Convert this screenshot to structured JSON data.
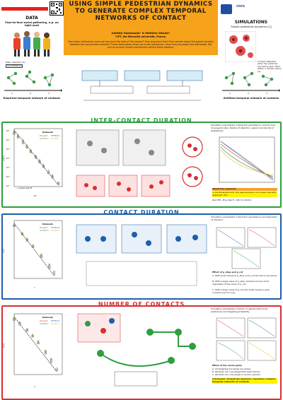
{
  "header": {
    "title": "USING SIMPLE PEDESTRIAN DYNAMICS TO GENERATE COMPLEX TEMPORAL NETWORKS OF CONTACT",
    "authors": "Juliette Gambaudo¹ & Mathieu Génois¹",
    "affiliation": "¹CPT, Aix-Marseille université, France.",
    "intro": "How many interactions have we had since the start of this session? How long were they? Ever wonder about the typical duration between two consecutive contacts? These observables show non-trivial behaviours, since they are power law distributed. We aim to uncover simple mechanisms behind these patterns.",
    "logo_text": "cnrs"
  },
  "data_panel": {
    "heading": "DATA",
    "subtitle": "Face-to-face social gathering, e.g. on right now!",
    "collection_label": "Data collection [1]",
    "collection_source": "SocioPatterns",
    "timeline_ticks": [
      "1",
      "2",
      "3"
    ],
    "caption": "Empirical temporal network of contacts"
  },
  "sim_panel": {
    "heading": "SIMULATIONS",
    "subtitle": "Simple pedestrian dynamics [1]",
    "contact_note": "Contact detected when two particles are facing each other within a certain radius [1]",
    "timeline_ticks": [
      "1",
      "2",
      "3"
    ],
    "caption": "Artificial temporal network of contacts"
  },
  "sections": {
    "inter_contact": "INTER-CONTACT DURATION",
    "contact": "CONTACT DURATION",
    "number": "NUMBER OF CONTACTS"
  },
  "plots": {
    "inter": {
      "legend_title": "Datasets",
      "legend_items": [
        "Hosp13",
        "SFHH14",
        "ICCSS17",
        "Conf19"
      ],
      "y_label": "p(Δτ)",
      "x_label": "Δτ",
      "fit_label": "— power-law fit",
      "y_ticks": [
        "10⁻¹",
        "10⁻²",
        "10⁻³",
        "10⁻⁴",
        "10⁻⁵",
        "10⁻⁶",
        "10⁻⁷"
      ],
      "x_ticks": [
        "10⁰",
        "10¹",
        "10²",
        "10³",
        "10⁴"
      ],
      "note": "Simulation parameters: Interaction persistence controls how long agents stay; Radius of detection, speed and density of pedestrians.",
      "about_title": "About the exponent",
      "about_text": "In the Brownian limit, the approximation is a power law with exponent -3/2.",
      "ref": "Reid PM., Phys Rev E, 106 (1) (2022)."
    },
    "contact": {
      "legend_title": "Datasets",
      "legend_items": [
        "Hosp13",
        "SFHH14",
        "ICCSS17",
        "Conf19"
      ],
      "y_label": "p(τ)",
      "x_label": "τ",
      "note": "Simulation parameters: Interaction persistence and alignment of direction.",
      "effect_title": "Effect of p_stop and p_rot",
      "effect_lines": [
        "A. With small values of p_stop and p_rot the tail is recovered.",
        "B. With a large value of p_stop contacts are too short, regardless of the value of p_rot.",
        "C. With a large value of p_rot and small values p_stop, contacts are too long."
      ]
    },
    "number": {
      "legend_title": "Datasets",
      "legend_items": [
        "Hosp13",
        "SFHH14",
        "ICCSS17",
        "Conf19"
      ],
      "y_label": "p(n)",
      "x_label": "n",
      "note": "Simulation parameters: Fraction of agents with social preference and targeting probability.",
      "effect_title": "Effect of the social game",
      "effect_lines": [
        "A. All targeting processes are active.",
        "B. Particles can only target their best friends.",
        "C. Particles can only target a random partner."
      ],
      "conclusion": "Conclusion: Pedestrian dynamics reproduce complex temporal networks of contacts."
    }
  },
  "colors": {
    "orange": "#f7a21b",
    "green": "#2e9e3e",
    "blue": "#1e5fa8",
    "red": "#d63030",
    "yellow": "#fff200"
  },
  "chart_data": [
    {
      "type": "scatter",
      "series": [
        {
          "name": "Hosp13",
          "x": [
            1,
            2,
            5,
            10,
            20,
            50,
            100,
            200,
            500,
            1000,
            3000
          ],
          "y": [
            0.2,
            0.08,
            0.02,
            0.006,
            0.002,
            0.0005,
            0.00015,
            5e-05,
            1e-05,
            4e-06,
            8e-07
          ]
        },
        {
          "name": "SFHH14",
          "x": [
            1,
            2,
            5,
            10,
            20,
            50,
            100,
            200,
            500,
            1000,
            3000
          ],
          "y": [
            0.15,
            0.06,
            0.015,
            0.005,
            0.0015,
            0.0004,
            0.00012,
            4e-05,
            9e-06,
            3e-06,
            6e-07
          ]
        },
        {
          "name": "ICCSS17",
          "x": [
            1,
            2,
            5,
            10,
            20,
            50,
            100,
            200,
            500,
            1000
          ],
          "y": [
            0.25,
            0.1,
            0.03,
            0.008,
            0.0025,
            0.0006,
            0.0002,
            6e-05,
            1.5e-05,
            5e-06
          ]
        },
        {
          "name": "Conf19",
          "x": [
            1,
            2,
            5,
            10,
            20,
            50,
            100,
            200,
            500,
            1000
          ],
          "y": [
            0.18,
            0.07,
            0.018,
            0.0055,
            0.0018,
            0.00045,
            0.00014,
            4.5e-05,
            1e-05,
            3.5e-06
          ]
        }
      ],
      "xlabel": "Δτ",
      "ylabel": "p(Δτ)",
      "xscale": "log",
      "yscale": "log"
    },
    {
      "type": "scatter",
      "series": [
        {
          "name": "Hosp13",
          "x": [
            1,
            2,
            3,
            5,
            10,
            20,
            30
          ],
          "y": [
            0.6,
            0.15,
            0.06,
            0.02,
            0.004,
            0.0008,
            0.0003
          ]
        },
        {
          "name": "SFHH14",
          "x": [
            1,
            2,
            3,
            5,
            10,
            20,
            30
          ],
          "y": [
            0.55,
            0.14,
            0.05,
            0.018,
            0.0035,
            0.0006,
            0.0002
          ]
        },
        {
          "name": "ICCSS17",
          "x": [
            1,
            2,
            3,
            5,
            10,
            20
          ],
          "y": [
            0.65,
            0.16,
            0.065,
            0.022,
            0.005,
            0.001
          ]
        },
        {
          "name": "Conf19",
          "x": [
            1,
            2,
            3,
            5,
            10,
            20
          ],
          "y": [
            0.6,
            0.15,
            0.058,
            0.02,
            0.0045,
            0.0009
          ]
        }
      ],
      "xlabel": "τ",
      "ylabel": "p(τ)",
      "xscale": "log",
      "yscale": "log"
    },
    {
      "type": "scatter",
      "series": [
        {
          "name": "Hosp13",
          "x": [
            1,
            2,
            5,
            10,
            20,
            50,
            100,
            200
          ],
          "y": [
            0.3,
            0.15,
            0.05,
            0.02,
            0.007,
            0.0015,
            0.0004,
            0.0001
          ]
        },
        {
          "name": "SFHH14",
          "x": [
            1,
            2,
            5,
            10,
            20,
            50,
            100,
            200
          ],
          "y": [
            0.25,
            0.12,
            0.045,
            0.018,
            0.006,
            0.0012,
            0.0003,
            8e-05
          ]
        },
        {
          "name": "ICCSS17",
          "x": [
            1,
            2,
            5,
            10,
            20,
            50,
            100
          ],
          "y": [
            0.32,
            0.16,
            0.055,
            0.022,
            0.008,
            0.0018,
            0.0005
          ]
        },
        {
          "name": "Conf19",
          "x": [
            1,
            2,
            5,
            10,
            20,
            50,
            100
          ],
          "y": [
            0.28,
            0.14,
            0.05,
            0.02,
            0.0065,
            0.0014,
            0.00035
          ]
        }
      ],
      "xlabel": "n",
      "ylabel": "p(n)",
      "xscale": "log",
      "yscale": "log"
    }
  ]
}
